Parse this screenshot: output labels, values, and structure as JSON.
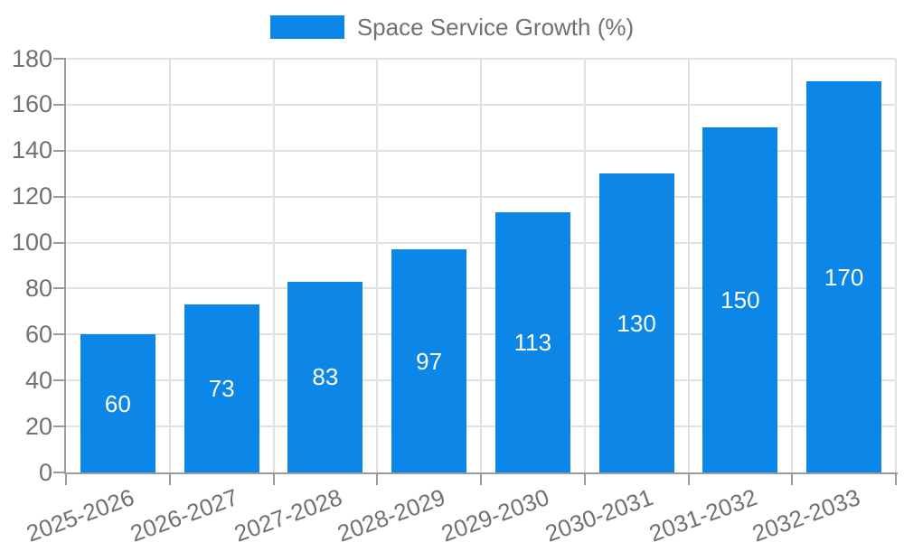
{
  "legend": {
    "label": "Space Service Growth (%)"
  },
  "colors": {
    "bar": "#0c87e8",
    "grid": "#e1e1e1",
    "axis": "#9b9b9b",
    "tick": "#9b9b9b",
    "text": "#717171",
    "value_label": "#ffffff",
    "background": "#ffffff"
  },
  "chart_data": {
    "type": "bar",
    "title": "",
    "xlabel": "",
    "ylabel": "",
    "series_name": "Space Service Growth (%)",
    "categories": [
      "2025-2026",
      "2026-2027",
      "2027-2028",
      "2028-2029",
      "2029-2030",
      "2030-2031",
      "2031-2032",
      "2032-2033"
    ],
    "values": [
      60,
      73,
      83,
      97,
      113,
      130,
      150,
      170
    ],
    "value_labels_shown": true,
    "value_label_position": "inside-center",
    "ylim": [
      0,
      180
    ],
    "ytick_step": 20,
    "yticks": [
      0,
      20,
      40,
      60,
      80,
      100,
      120,
      140,
      160,
      180
    ],
    "grid": true,
    "legend_position": "top-center"
  }
}
